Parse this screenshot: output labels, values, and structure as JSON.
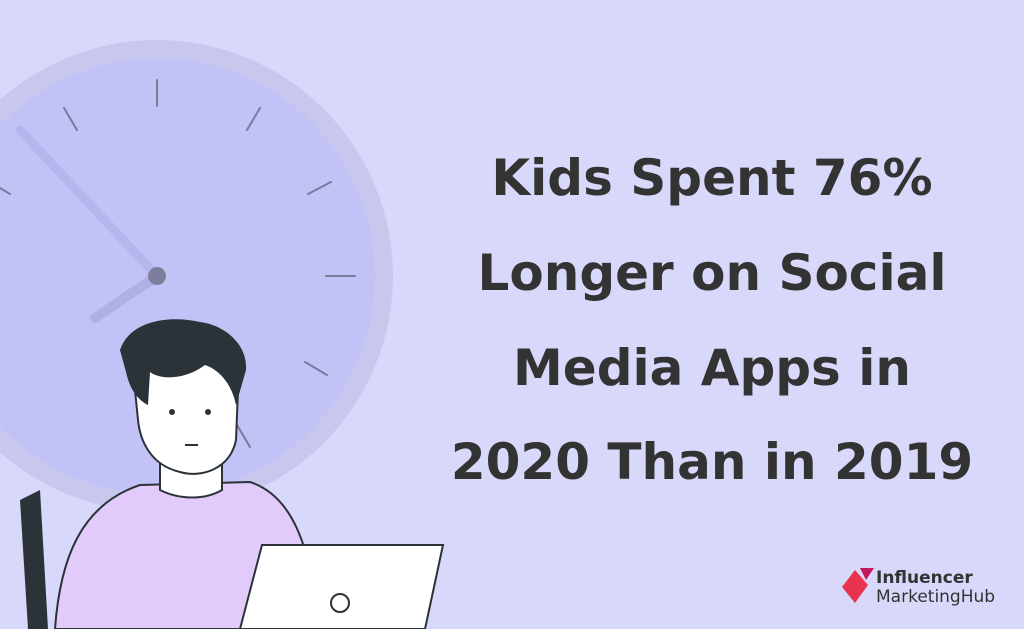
{
  "headline": {
    "lines": [
      "Kids Spent 76%",
      "Longer on Social",
      "Media Apps in",
      "2020 Than in 2019"
    ]
  },
  "brand": {
    "line1": "Influencer",
    "line2": "MarketingHub"
  }
}
